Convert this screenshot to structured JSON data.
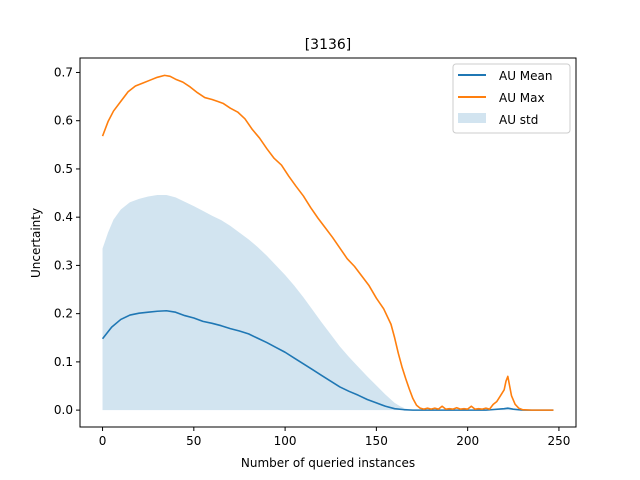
{
  "chart_data": {
    "type": "line",
    "title": "[3136]",
    "xlabel": "Number of queried instances",
    "ylabel": "Uncertainty",
    "xlim": [
      -12.35,
      259.35
    ],
    "ylim": [
      -0.035,
      0.73
    ],
    "xticks": [
      0,
      50,
      100,
      150,
      200,
      250
    ],
    "yticks": [
      0.0,
      0.1,
      0.2,
      0.3,
      0.4,
      0.5,
      0.6,
      0.7
    ],
    "ytick_labels": [
      "0.0",
      "0.1",
      "0.2",
      "0.3",
      "0.4",
      "0.5",
      "0.6",
      "0.7"
    ],
    "grid": false,
    "legend_position": "top-right",
    "colors": {
      "mean": "#1f77b4",
      "max": "#ff7f0e",
      "std_fill": "#1f77b4"
    },
    "series": [
      {
        "name": "AU Mean",
        "kind": "line",
        "x": [
          0,
          5,
          10,
          15,
          20,
          25,
          30,
          35,
          40,
          45,
          50,
          55,
          60,
          65,
          70,
          75,
          80,
          85,
          90,
          95,
          100,
          105,
          110,
          115,
          120,
          125,
          130,
          135,
          140,
          145,
          150,
          155,
          160,
          165,
          170,
          175,
          180,
          190,
          200,
          210,
          220,
          222,
          225,
          230,
          240,
          247
        ],
        "y": [
          0.148,
          0.172,
          0.188,
          0.197,
          0.201,
          0.203,
          0.205,
          0.206,
          0.203,
          0.196,
          0.191,
          0.184,
          0.18,
          0.175,
          0.169,
          0.164,
          0.158,
          0.149,
          0.14,
          0.13,
          0.12,
          0.108,
          0.096,
          0.084,
          0.072,
          0.06,
          0.048,
          0.039,
          0.031,
          0.022,
          0.015,
          0.008,
          0.003,
          0.001,
          0.0,
          0.0,
          0.0,
          0.0,
          0.0,
          0.0,
          0.003,
          0.004,
          0.002,
          0.0,
          0.0,
          0.0
        ]
      },
      {
        "name": "AU Max",
        "kind": "line",
        "x": [
          0,
          3,
          6,
          10,
          14,
          18,
          22,
          26,
          30,
          34,
          37,
          40,
          44,
          48,
          52,
          56,
          60,
          63,
          66,
          70,
          74,
          78,
          82,
          86,
          90,
          94,
          98,
          102,
          106,
          110,
          114,
          118,
          122,
          126,
          130,
          134,
          138,
          142,
          146,
          150,
          154,
          158,
          160,
          162,
          164,
          166,
          168,
          170,
          172,
          174,
          176,
          178,
          180,
          182,
          184,
          186,
          188,
          190,
          192,
          194,
          196,
          198,
          200,
          202,
          204,
          206,
          208,
          210,
          212,
          214,
          216,
          218,
          220,
          221,
          222,
          223,
          224,
          226,
          228,
          230,
          235,
          240,
          247
        ],
        "y": [
          0.568,
          0.598,
          0.62,
          0.64,
          0.66,
          0.672,
          0.678,
          0.684,
          0.69,
          0.694,
          0.692,
          0.686,
          0.68,
          0.67,
          0.658,
          0.648,
          0.644,
          0.64,
          0.636,
          0.626,
          0.618,
          0.604,
          0.582,
          0.564,
          0.542,
          0.522,
          0.508,
          0.485,
          0.464,
          0.444,
          0.42,
          0.398,
          0.378,
          0.358,
          0.336,
          0.314,
          0.298,
          0.278,
          0.258,
          0.232,
          0.21,
          0.178,
          0.15,
          0.118,
          0.09,
          0.066,
          0.044,
          0.024,
          0.01,
          0.004,
          0.002,
          0.004,
          0.002,
          0.004,
          0.002,
          0.008,
          0.002,
          0.003,
          0.002,
          0.005,
          0.002,
          0.003,
          0.002,
          0.008,
          0.002,
          0.003,
          0.002,
          0.004,
          0.002,
          0.012,
          0.018,
          0.03,
          0.042,
          0.06,
          0.07,
          0.05,
          0.03,
          0.012,
          0.004,
          0.001,
          0.0,
          0.0,
          0.0
        ]
      },
      {
        "name": "AU std",
        "kind": "band",
        "x": [
          0,
          3,
          6,
          10,
          15,
          20,
          25,
          30,
          35,
          40,
          45,
          50,
          55,
          60,
          65,
          70,
          75,
          80,
          85,
          90,
          95,
          100,
          105,
          110,
          115,
          120,
          125,
          130,
          135,
          140,
          145,
          150,
          155,
          160,
          163,
          166,
          170,
          175,
          180,
          190,
          200,
          210,
          220,
          222,
          225,
          230,
          240,
          247
        ],
        "upper": [
          0.335,
          0.368,
          0.395,
          0.416,
          0.431,
          0.438,
          0.443,
          0.446,
          0.446,
          0.441,
          0.432,
          0.423,
          0.413,
          0.403,
          0.394,
          0.382,
          0.368,
          0.354,
          0.338,
          0.32,
          0.3,
          0.28,
          0.258,
          0.234,
          0.208,
          0.182,
          0.157,
          0.132,
          0.11,
          0.09,
          0.07,
          0.051,
          0.032,
          0.015,
          0.008,
          0.003,
          0.0,
          0.0,
          0.0,
          0.0,
          0.0,
          0.0,
          0.004,
          0.006,
          0.003,
          0.0,
          0.0,
          0.0
        ],
        "lower": [
          0.0,
          0.0,
          0.0,
          0.0,
          0.0,
          0.0,
          0.0,
          0.0,
          0.0,
          0.0,
          0.0,
          0.0,
          0.0,
          0.0,
          0.0,
          0.0,
          0.0,
          0.0,
          0.0,
          0.0,
          0.0,
          0.0,
          0.0,
          0.0,
          0.0,
          0.0,
          0.0,
          0.0,
          0.0,
          0.0,
          0.0,
          0.0,
          0.0,
          0.0,
          0.0,
          0.0,
          0.0,
          0.0,
          0.0,
          0.0,
          0.0,
          0.0,
          0.0,
          0.0,
          0.0,
          0.0,
          0.0,
          0.0
        ]
      }
    ]
  }
}
